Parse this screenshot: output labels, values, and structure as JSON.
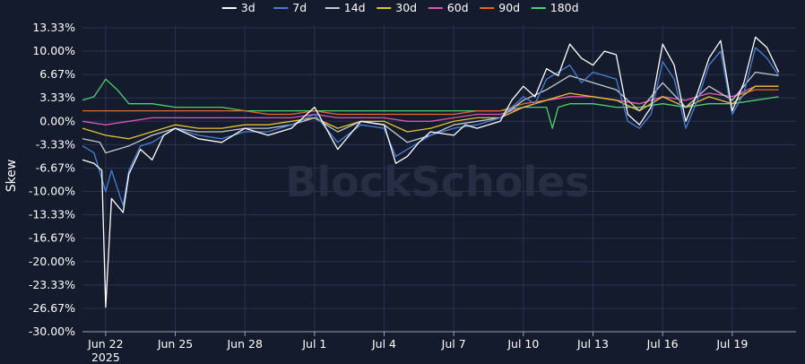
{
  "chart_data": {
    "type": "line",
    "title": "",
    "xlabel": "",
    "ylabel": "Skew",
    "watermark": "BlockScholes",
    "legend_position": "top-center",
    "grid": true,
    "x_range": [
      "2025-06-21",
      "2025-07-21"
    ],
    "ylim": [
      -30.0,
      13.33
    ],
    "y_ticks": [
      {
        "value": 13.33,
        "label": "13.33%"
      },
      {
        "value": 10.0,
        "label": "10.00%"
      },
      {
        "value": 6.67,
        "label": "6.67%"
      },
      {
        "value": 3.33,
        "label": "3.33%"
      },
      {
        "value": 0.0,
        "label": "0.00%"
      },
      {
        "value": -3.33,
        "label": "-3.33%"
      },
      {
        "value": -6.67,
        "label": "-6.67%"
      },
      {
        "value": -10.0,
        "label": "-10.00%"
      },
      {
        "value": -13.33,
        "label": "-13.33%"
      },
      {
        "value": -16.67,
        "label": "-16.67%"
      },
      {
        "value": -20.0,
        "label": "-20.00%"
      },
      {
        "value": -23.33,
        "label": "-23.33%"
      },
      {
        "value": -26.67,
        "label": "-26.67%"
      },
      {
        "value": -30.0,
        "label": "-30.00%"
      }
    ],
    "x_ticks": [
      {
        "value": "2025-06-22",
        "label": "Jun 22",
        "sublabel": "2025"
      },
      {
        "value": "2025-06-25",
        "label": "Jun 25"
      },
      {
        "value": "2025-06-28",
        "label": "Jun 28"
      },
      {
        "value": "2025-07-01",
        "label": "Jul 1"
      },
      {
        "value": "2025-07-04",
        "label": "Jul 4"
      },
      {
        "value": "2025-07-07",
        "label": "Jul 7"
      },
      {
        "value": "2025-07-10",
        "label": "Jul 10"
      },
      {
        "value": "2025-07-13",
        "label": "Jul 13"
      },
      {
        "value": "2025-07-16",
        "label": "Jul 16"
      },
      {
        "value": "2025-07-19",
        "label": "Jul 19"
      }
    ],
    "series": [
      {
        "name": "3d",
        "color": "#ffffff",
        "x": [
          "2025-06-21",
          "2025-06-21T12:00",
          "2025-06-21T20:00",
          "2025-06-22",
          "2025-06-22T06:00",
          "2025-06-22T18:00",
          "2025-06-23",
          "2025-06-23T12:00",
          "2025-06-24",
          "2025-06-24T12:00",
          "2025-06-25",
          "2025-06-26",
          "2025-06-27",
          "2025-06-28",
          "2025-06-29",
          "2025-06-30",
          "2025-07-01",
          "2025-07-01T12:00",
          "2025-07-02",
          "2025-07-03",
          "2025-07-04",
          "2025-07-04T12:00",
          "2025-07-05",
          "2025-07-05T12:00",
          "2025-07-06",
          "2025-07-07",
          "2025-07-07T12:00",
          "2025-07-08",
          "2025-07-09",
          "2025-07-09T12:00",
          "2025-07-10",
          "2025-07-10T12:00",
          "2025-07-11",
          "2025-07-11T12:00",
          "2025-07-12",
          "2025-07-12T12:00",
          "2025-07-13",
          "2025-07-13T12:00",
          "2025-07-14",
          "2025-07-14T12:00",
          "2025-07-15",
          "2025-07-15T12:00",
          "2025-07-16",
          "2025-07-16T12:00",
          "2025-07-17",
          "2025-07-17T12:00",
          "2025-07-18",
          "2025-07-18T12:00",
          "2025-07-19",
          "2025-07-19T12:00",
          "2025-07-20",
          "2025-07-20T12:00",
          "2025-07-21"
        ],
        "y": [
          -5.5,
          -6.0,
          -7.0,
          -26.5,
          -11.0,
          -13.0,
          -7.5,
          -4.0,
          -5.5,
          -2.0,
          -1.0,
          -2.5,
          -3.0,
          -1.0,
          -2.0,
          -1.0,
          2.0,
          -1.0,
          -4.0,
          0.0,
          -0.5,
          -6.0,
          -5.0,
          -3.0,
          -1.5,
          -2.0,
          -0.5,
          -1.0,
          0.0,
          3.0,
          5.0,
          3.5,
          7.5,
          6.5,
          11.0,
          9.0,
          8.0,
          10.0,
          9.5,
          1.0,
          -0.5,
          2.0,
          11.0,
          8.0,
          0.0,
          4.0,
          9.0,
          11.5,
          1.5,
          5.5,
          12.0,
          10.5,
          7.0
        ]
      },
      {
        "name": "7d",
        "color": "#4a7fd8",
        "x": [
          "2025-06-21",
          "2025-06-21T12:00",
          "2025-06-22",
          "2025-06-22T06:00",
          "2025-06-22T18:00",
          "2025-06-23",
          "2025-06-23T12:00",
          "2025-06-24",
          "2025-06-25",
          "2025-06-26",
          "2025-06-27",
          "2025-06-28",
          "2025-06-29",
          "2025-06-30",
          "2025-07-01",
          "2025-07-02",
          "2025-07-03",
          "2025-07-04",
          "2025-07-04T12:00",
          "2025-07-05",
          "2025-07-06",
          "2025-07-07",
          "2025-07-08",
          "2025-07-09",
          "2025-07-10",
          "2025-07-10T12:00",
          "2025-07-11",
          "2025-07-12",
          "2025-07-12T12:00",
          "2025-07-13",
          "2025-07-14",
          "2025-07-14T12:00",
          "2025-07-15",
          "2025-07-15T12:00",
          "2025-07-16",
          "2025-07-16T12:00",
          "2025-07-17",
          "2025-07-17T12:00",
          "2025-07-18",
          "2025-07-18T12:00",
          "2025-07-19",
          "2025-07-19T12:00",
          "2025-07-20",
          "2025-07-20T12:00",
          "2025-07-21"
        ],
        "y": [
          -3.5,
          -4.5,
          -10.0,
          -7.0,
          -12.0,
          -7.0,
          -3.5,
          -3.0,
          -1.0,
          -2.0,
          -2.5,
          -1.5,
          -1.5,
          -0.5,
          1.0,
          -3.0,
          -0.5,
          -1.0,
          -5.0,
          -4.0,
          -2.0,
          -1.0,
          -0.5,
          0.5,
          3.5,
          2.5,
          6.0,
          8.0,
          5.5,
          7.0,
          6.0,
          0.0,
          -1.0,
          1.0,
          8.5,
          6.0,
          -1.0,
          3.0,
          8.0,
          10.0,
          1.0,
          4.0,
          10.5,
          9.0,
          6.5
        ]
      },
      {
        "name": "14d",
        "color": "#c4c8d0",
        "x": [
          "2025-06-21",
          "2025-06-21T18:00",
          "2025-06-22",
          "2025-06-23",
          "2025-06-24",
          "2025-06-25",
          "2025-06-26",
          "2025-06-27",
          "2025-06-28",
          "2025-06-29",
          "2025-06-30",
          "2025-07-01",
          "2025-07-02",
          "2025-07-03",
          "2025-07-04",
          "2025-07-05",
          "2025-07-06",
          "2025-07-07",
          "2025-07-08",
          "2025-07-09",
          "2025-07-10",
          "2025-07-11",
          "2025-07-12",
          "2025-07-13",
          "2025-07-14",
          "2025-07-15",
          "2025-07-16",
          "2025-07-17",
          "2025-07-18",
          "2025-07-19",
          "2025-07-20",
          "2025-07-21"
        ],
        "y": [
          -2.5,
          -3.0,
          -4.5,
          -3.5,
          -2.0,
          -1.0,
          -1.5,
          -1.5,
          -1.0,
          -1.0,
          -0.5,
          0.5,
          -1.5,
          0.0,
          -0.5,
          -3.0,
          -2.0,
          -0.5,
          0.0,
          0.5,
          3.0,
          4.5,
          6.5,
          5.5,
          4.5,
          1.5,
          5.5,
          2.0,
          5.0,
          3.0,
          7.0,
          6.5
        ]
      },
      {
        "name": "30d",
        "color": "#e6c12e",
        "x": [
          "2025-06-21",
          "2025-06-22",
          "2025-06-23",
          "2025-06-24",
          "2025-06-25",
          "2025-06-26",
          "2025-06-27",
          "2025-06-28",
          "2025-06-29",
          "2025-06-30",
          "2025-07-01",
          "2025-07-02",
          "2025-07-03",
          "2025-07-04",
          "2025-07-05",
          "2025-07-06",
          "2025-07-07",
          "2025-07-08",
          "2025-07-09",
          "2025-07-10",
          "2025-07-11",
          "2025-07-12",
          "2025-07-13",
          "2025-07-14",
          "2025-07-15",
          "2025-07-16",
          "2025-07-17",
          "2025-07-18",
          "2025-07-19",
          "2025-07-20",
          "2025-07-21"
        ],
        "y": [
          -1.0,
          -2.0,
          -2.5,
          -1.5,
          -0.5,
          -1.0,
          -1.0,
          -0.5,
          -0.5,
          0.0,
          0.5,
          -1.0,
          0.0,
          0.0,
          -1.5,
          -1.0,
          0.0,
          0.5,
          0.5,
          2.0,
          3.0,
          4.0,
          3.5,
          3.0,
          1.5,
          3.5,
          2.0,
          3.5,
          2.5,
          5.0,
          5.0
        ]
      },
      {
        "name": "60d",
        "color": "#e052b8",
        "x": [
          "2025-06-21",
          "2025-06-22",
          "2025-06-23",
          "2025-06-24",
          "2025-06-25",
          "2025-06-26",
          "2025-06-27",
          "2025-06-28",
          "2025-06-29",
          "2025-06-30",
          "2025-07-01",
          "2025-07-02",
          "2025-07-03",
          "2025-07-04",
          "2025-07-05",
          "2025-07-06",
          "2025-07-07",
          "2025-07-08",
          "2025-07-09",
          "2025-07-10",
          "2025-07-11",
          "2025-07-12",
          "2025-07-13",
          "2025-07-14",
          "2025-07-15",
          "2025-07-16",
          "2025-07-17",
          "2025-07-18",
          "2025-07-19",
          "2025-07-20",
          "2025-07-21"
        ],
        "y": [
          0.0,
          -0.5,
          0.0,
          0.5,
          0.5,
          0.5,
          0.5,
          0.5,
          0.5,
          0.5,
          1.0,
          0.5,
          0.5,
          0.5,
          0.0,
          0.0,
          0.5,
          1.0,
          1.0,
          2.0,
          3.0,
          3.5,
          3.5,
          3.0,
          2.5,
          3.5,
          3.0,
          4.0,
          3.5,
          5.0,
          5.0
        ]
      },
      {
        "name": "90d",
        "color": "#e06a2c",
        "x": [
          "2025-06-21",
          "2025-06-22",
          "2025-06-23",
          "2025-06-24",
          "2025-06-25",
          "2025-06-26",
          "2025-06-27",
          "2025-06-28",
          "2025-06-29",
          "2025-06-30",
          "2025-07-01",
          "2025-07-02",
          "2025-07-03",
          "2025-07-04",
          "2025-07-05",
          "2025-07-06",
          "2025-07-07",
          "2025-07-08",
          "2025-07-09",
          "2025-07-10",
          "2025-07-11",
          "2025-07-12",
          "2025-07-13",
          "2025-07-14",
          "2025-07-15",
          "2025-07-16",
          "2025-07-17",
          "2025-07-18",
          "2025-07-19",
          "2025-07-20",
          "2025-07-21"
        ],
        "y": [
          1.5,
          1.5,
          1.5,
          1.5,
          1.5,
          1.5,
          1.5,
          1.5,
          1.0,
          1.0,
          1.5,
          1.0,
          1.0,
          1.0,
          1.0,
          1.0,
          1.0,
          1.5,
          1.5,
          2.5,
          3.0,
          3.5,
          3.5,
          3.0,
          2.5,
          3.5,
          3.0,
          4.0,
          3.5,
          4.5,
          4.5
        ]
      },
      {
        "name": "180d",
        "color": "#4fd16a",
        "x": [
          "2025-06-21",
          "2025-06-21T12:00",
          "2025-06-22",
          "2025-06-22T12:00",
          "2025-06-23",
          "2025-06-24",
          "2025-06-25",
          "2025-06-26",
          "2025-06-27",
          "2025-06-28",
          "2025-06-29",
          "2025-06-30",
          "2025-07-01",
          "2025-07-02",
          "2025-07-03",
          "2025-07-04",
          "2025-07-05",
          "2025-07-06",
          "2025-07-07",
          "2025-07-08",
          "2025-07-09",
          "2025-07-10",
          "2025-07-11",
          "2025-07-11T06:00",
          "2025-07-11T12:00",
          "2025-07-12",
          "2025-07-13",
          "2025-07-14",
          "2025-07-15",
          "2025-07-16",
          "2025-07-17",
          "2025-07-18",
          "2025-07-19",
          "2025-07-20",
          "2025-07-21"
        ],
        "y": [
          3.0,
          3.5,
          6.0,
          4.5,
          2.5,
          2.5,
          2.0,
          2.0,
          2.0,
          1.5,
          1.5,
          1.5,
          1.5,
          1.5,
          1.5,
          1.5,
          1.5,
          1.5,
          1.5,
          1.5,
          1.5,
          2.0,
          2.0,
          -1.0,
          2.0,
          2.5,
          2.5,
          2.0,
          2.0,
          2.5,
          2.0,
          2.5,
          2.5,
          3.0,
          3.5
        ]
      }
    ]
  }
}
